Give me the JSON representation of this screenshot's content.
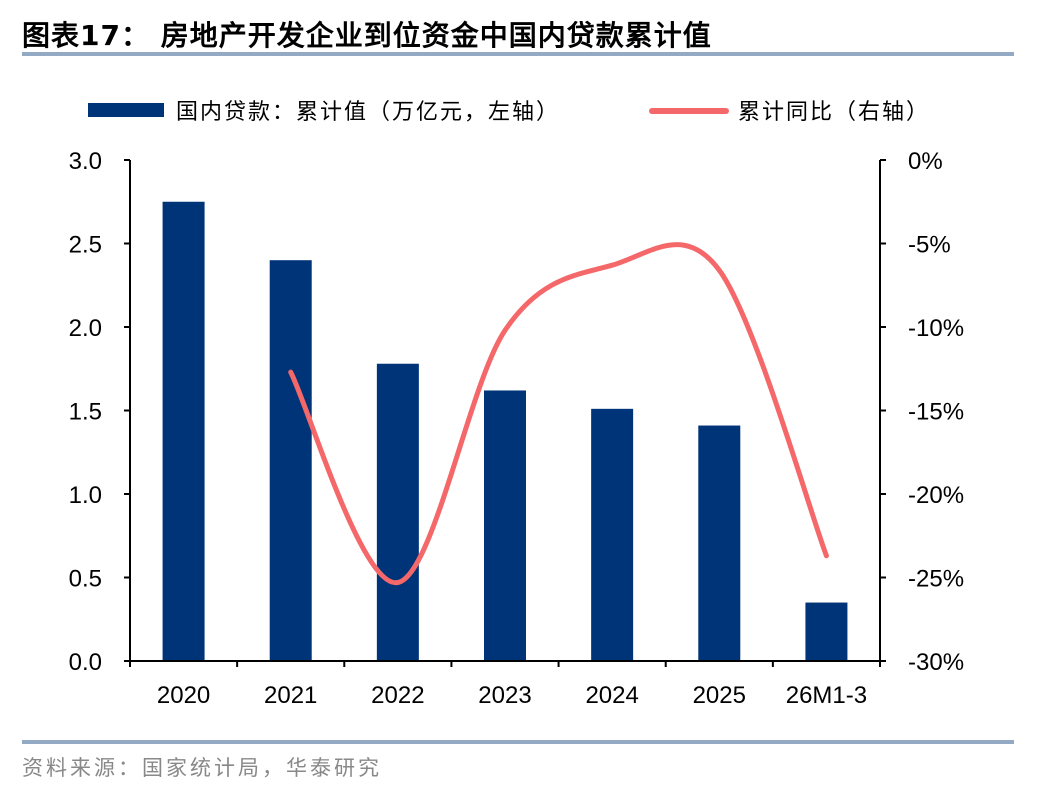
{
  "title": "图表17：  房地产开发企业到位资金中国内贷款累计值",
  "source": "资料来源：国家统计局，华泰研究",
  "colors": {
    "bar": "#003478",
    "line": "#f4686a",
    "rule": "#93a9c4"
  },
  "chart_data": {
    "type": "bar+line",
    "categories": [
      "2020",
      "2021",
      "2022",
      "2023",
      "2024",
      "2025",
      "26M1-3"
    ],
    "series": [
      {
        "name": "国内贷款：累计值（万亿元，左轴）",
        "type": "bar",
        "axis": "left",
        "values": [
          2.75,
          2.4,
          1.78,
          1.62,
          1.51,
          1.41,
          0.35
        ]
      },
      {
        "name": "累计同比（右轴）",
        "type": "line",
        "axis": "right",
        "values": [
          null,
          -12.7,
          -25.3,
          -10.2,
          -6.3,
          -6.6,
          -23.7
        ]
      }
    ],
    "left_axis": {
      "ylim": [
        0,
        3.0
      ],
      "ticks": [
        "0.0",
        "0.5",
        "1.0",
        "1.5",
        "2.0",
        "2.5",
        "3.0"
      ]
    },
    "right_axis": {
      "ylim": [
        -30,
        0
      ],
      "ticks": [
        "-30%",
        "-25%",
        "-20%",
        "-15%",
        "-10%",
        "-5%",
        "0%"
      ]
    },
    "legend_placement": "top",
    "grid": false
  }
}
